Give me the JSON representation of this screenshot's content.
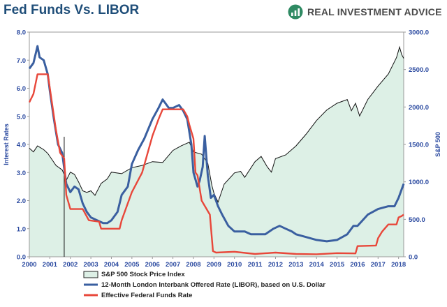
{
  "title": "Fed Funds Vs. LIBOR",
  "brand": {
    "name": "REAL INVESTMENT ADVICE",
    "logo_icon": "rising-bars-logo-icon",
    "accent": "#2f8a63"
  },
  "chart_data": {
    "type": "line",
    "title": "Fed Funds Vs. LIBOR",
    "y_left": {
      "label": "Interest Rates",
      "ticks": [
        "0.0",
        "1.0",
        "2.0",
        "3.0",
        "4.0",
        "5.0",
        "6.0",
        "7.0",
        "8.0"
      ],
      "range": [
        0,
        8
      ],
      "color": "#2b4aa0"
    },
    "y_right": {
      "label": "S&P 500",
      "ticks": [
        "0.0",
        "500.0",
        "1000.0",
        "1500.0",
        "2000.0",
        "2500.0",
        "3000.0"
      ],
      "range": [
        0,
        3000
      ],
      "color": "#2b4aa0"
    },
    "x_ticks": [
      "2000",
      "2001",
      "2002",
      "2003",
      "2004",
      "2005",
      "2006",
      "2007",
      "2008",
      "2009",
      "2010",
      "2011",
      "2012",
      "2013",
      "2014",
      "2015",
      "2016",
      "2017",
      "2018"
    ],
    "x_range": [
      2000,
      2018.25
    ],
    "series": [
      {
        "name": "S&P 500 Stock Price Index",
        "axis": "right",
        "style": "area",
        "line_color": "#111111",
        "fill_color": "#ddf0e6",
        "x": [
          2000.0,
          2000.2,
          2000.4,
          2000.7,
          2000.9,
          2001.1,
          2001.3,
          2001.6,
          2001.7,
          2001.8,
          2002.0,
          2002.2,
          2002.4,
          2002.6,
          2002.8,
          2003.0,
          2003.2,
          2003.5,
          2003.8,
          2004.0,
          2004.5,
          2005.0,
          2005.5,
          2006.0,
          2006.5,
          2007.0,
          2007.4,
          2007.8,
          2008.0,
          2008.4,
          2008.7,
          2008.9,
          2009.0,
          2009.2,
          2009.5,
          2010.0,
          2010.3,
          2010.5,
          2011.0,
          2011.3,
          2011.6,
          2011.8,
          2012.0,
          2012.5,
          2013.0,
          2013.5,
          2014.0,
          2014.5,
          2015.0,
          2015.5,
          2015.7,
          2015.9,
          2016.1,
          2016.5,
          2017.0,
          2017.5,
          2017.9,
          2018.05,
          2018.15,
          2018.25
        ],
        "values": [
          1450,
          1400,
          1480,
          1430,
          1380,
          1300,
          1220,
          1160,
          1100,
          1020,
          1130,
          1100,
          1000,
          880,
          860,
          880,
          820,
          980,
          1040,
          1130,
          1110,
          1190,
          1220,
          1270,
          1260,
          1420,
          1480,
          1530,
          1400,
          1370,
          1250,
          950,
          850,
          730,
          970,
          1120,
          1140,
          1060,
          1270,
          1340,
          1200,
          1130,
          1310,
          1360,
          1480,
          1640,
          1820,
          1960,
          2050,
          2100,
          1950,
          2050,
          1880,
          2100,
          2280,
          2440,
          2660,
          2800,
          2700,
          2650
        ]
      },
      {
        "name": "12-Month London Interbank Offered Rate (LIBOR), based on U.S. Dollar",
        "axis": "left",
        "style": "line",
        "color": "#3a5fa0",
        "x": [
          2000.0,
          2000.2,
          2000.4,
          2000.5,
          2000.7,
          2000.9,
          2001.0,
          2001.2,
          2001.4,
          2001.6,
          2001.8,
          2002.0,
          2002.2,
          2002.4,
          2002.6,
          2002.8,
          2003.0,
          2003.3,
          2003.6,
          2003.8,
          2004.0,
          2004.3,
          2004.5,
          2004.8,
          2005.0,
          2005.3,
          2005.6,
          2006.0,
          2006.3,
          2006.5,
          2006.8,
          2007.0,
          2007.3,
          2007.5,
          2007.7,
          2007.9,
          2008.0,
          2008.2,
          2008.3,
          2008.45,
          2008.55,
          2008.7,
          2008.85,
          2009.0,
          2009.2,
          2009.4,
          2009.7,
          2010.0,
          2010.3,
          2010.5,
          2010.8,
          2011.0,
          2011.5,
          2011.9,
          2012.2,
          2012.5,
          2012.8,
          2013.0,
          2013.5,
          2014.0,
          2014.5,
          2015.0,
          2015.5,
          2015.8,
          2016.0,
          2016.5,
          2017.0,
          2017.5,
          2017.8,
          2018.0,
          2018.15,
          2018.25
        ],
        "values": [
          6.7,
          6.9,
          7.5,
          7.1,
          7.0,
          6.5,
          5.9,
          4.9,
          4.0,
          3.7,
          2.6,
          2.3,
          2.5,
          2.4,
          1.9,
          1.6,
          1.4,
          1.3,
          1.2,
          1.2,
          1.3,
          1.6,
          2.2,
          2.5,
          3.3,
          3.8,
          4.2,
          4.9,
          5.3,
          5.6,
          5.3,
          5.3,
          5.4,
          5.2,
          4.9,
          4.0,
          3.0,
          2.5,
          2.7,
          3.2,
          4.3,
          2.9,
          2.1,
          2.2,
          1.8,
          1.5,
          1.1,
          0.9,
          0.9,
          0.9,
          0.8,
          0.8,
          0.8,
          1.0,
          1.1,
          1.0,
          0.9,
          0.8,
          0.7,
          0.6,
          0.55,
          0.6,
          0.8,
          1.1,
          1.1,
          1.5,
          1.7,
          1.8,
          1.8,
          2.1,
          2.4,
          2.6
        ]
      },
      {
        "name": "Effective Federal Funds Rate",
        "axis": "left",
        "style": "line",
        "color": "#e8473a",
        "x": [
          2000.0,
          2000.2,
          2000.4,
          2000.5,
          2000.9,
          2001.0,
          2001.1,
          2001.3,
          2001.5,
          2001.7,
          2001.8,
          2002.0,
          2002.6,
          2002.9,
          2003.4,
          2003.5,
          2004.4,
          2004.5,
          2004.7,
          2005.0,
          2005.5,
          2006.0,
          2006.3,
          2006.5,
          2007.5,
          2007.7,
          2007.8,
          2008.0,
          2008.1,
          2008.2,
          2008.4,
          2008.8,
          2008.95,
          2009.1,
          2010.0,
          2011.0,
          2012.0,
          2013.0,
          2014.0,
          2015.0,
          2015.9,
          2016.0,
          2016.9,
          2017.0,
          2017.2,
          2017.5,
          2017.9,
          2018.0,
          2018.15,
          2018.25
        ],
        "values": [
          5.5,
          5.8,
          6.5,
          6.5,
          6.5,
          6.0,
          5.5,
          4.5,
          3.7,
          3.5,
          2.2,
          1.7,
          1.7,
          1.3,
          1.25,
          1.0,
          1.0,
          1.3,
          1.7,
          2.3,
          3.0,
          4.3,
          4.9,
          5.25,
          5.25,
          5.0,
          4.7,
          4.2,
          3.0,
          2.9,
          2.0,
          1.5,
          0.2,
          0.15,
          0.18,
          0.1,
          0.15,
          0.1,
          0.09,
          0.13,
          0.12,
          0.38,
          0.4,
          0.66,
          0.9,
          1.15,
          1.15,
          1.4,
          1.45,
          1.5
        ]
      }
    ],
    "annotations": [
      {
        "type": "vertical-line",
        "x": 2001.7,
        "color": "#111111"
      }
    ],
    "legend": {
      "placement": "bottom"
    },
    "grid": false
  }
}
